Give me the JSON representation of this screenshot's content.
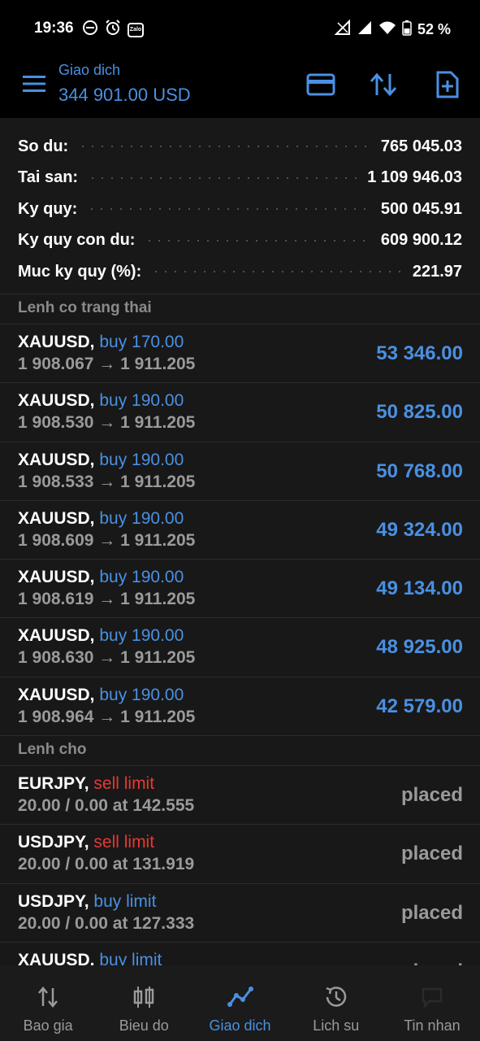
{
  "status_bar": {
    "time": "19:36",
    "battery_text": "52 %",
    "zalo_label": "Zalo",
    "icons_left": [
      "minus-circle-icon",
      "alarm-icon",
      "zalo-icon"
    ],
    "icons_right": [
      "no-signal-icon",
      "signal-icon",
      "wifi-icon",
      "battery-icon"
    ]
  },
  "header": {
    "title": "Giao dich",
    "balance": "344 901.00 USD",
    "actions": [
      "card-icon",
      "sort-arrows-icon",
      "new-document-icon"
    ]
  },
  "summary": [
    {
      "label": "So du:",
      "value": "765 045.03"
    },
    {
      "label": "Tai san:",
      "value": "1 109 946.03"
    },
    {
      "label": "Ky quy:",
      "value": "500 045.91"
    },
    {
      "label": "Ky quy con du:",
      "value": "609 900.12"
    },
    {
      "label": "Muc ky quy (%):",
      "value": "221.97"
    }
  ],
  "open_section": {
    "title": "Lenh co trang thai"
  },
  "open_orders": [
    {
      "symbol": "XAUUSD,",
      "side": "buy 170.00",
      "prices": "1 908.067 → 1 911.205",
      "profit": "53 346.00"
    },
    {
      "symbol": "XAUUSD,",
      "side": "buy 190.00",
      "prices": "1 908.530 → 1 911.205",
      "profit": "50 825.00"
    },
    {
      "symbol": "XAUUSD,",
      "side": "buy 190.00",
      "prices": "1 908.533 → 1 911.205",
      "profit": "50 768.00"
    },
    {
      "symbol": "XAUUSD,",
      "side": "buy 190.00",
      "prices": "1 908.609 → 1 911.205",
      "profit": "49 324.00"
    },
    {
      "symbol": "XAUUSD,",
      "side": "buy 190.00",
      "prices": "1 908.619 → 1 911.205",
      "profit": "49 134.00"
    },
    {
      "symbol": "XAUUSD,",
      "side": "buy 190.00",
      "prices": "1 908.630 → 1 911.205",
      "profit": "48 925.00"
    },
    {
      "symbol": "XAUUSD,",
      "side": "buy 190.00",
      "prices": "1 908.964 → 1 911.205",
      "profit": "42 579.00"
    }
  ],
  "pending_section": {
    "title": "Lenh cho"
  },
  "pending_orders": [
    {
      "symbol": "EURJPY,",
      "side": "sell limit",
      "side_type": "sell",
      "details": "20.00 / 0.00 at 142.555",
      "status": "placed"
    },
    {
      "symbol": "USDJPY,",
      "side": "sell limit",
      "side_type": "sell",
      "details": "20.00 / 0.00 at 131.919",
      "status": "placed"
    },
    {
      "symbol": "USDJPY,",
      "side": "buy limit",
      "side_type": "buy",
      "details": "20.00 / 0.00 at 127.333",
      "status": "placed"
    },
    {
      "symbol": "XAUUSD,",
      "side": "buy limit",
      "side_type": "buy",
      "details": "",
      "status": "placed"
    }
  ],
  "bottom_nav": [
    {
      "label": "Bao gia",
      "icon": "arrows-updown-icon",
      "active": false
    },
    {
      "label": "Bieu do",
      "icon": "candlestick-icon",
      "active": false
    },
    {
      "label": "Giao dich",
      "icon": "trend-line-icon",
      "active": true
    },
    {
      "label": "Lich su",
      "icon": "history-icon",
      "active": false
    },
    {
      "label": "Tin nhan",
      "icon": "chat-icon",
      "active": false
    }
  ],
  "colors": {
    "accent": "#4a90e2",
    "sell": "#e53935",
    "background": "#111111",
    "row": "#181818",
    "muted": "#9a9a9a"
  }
}
